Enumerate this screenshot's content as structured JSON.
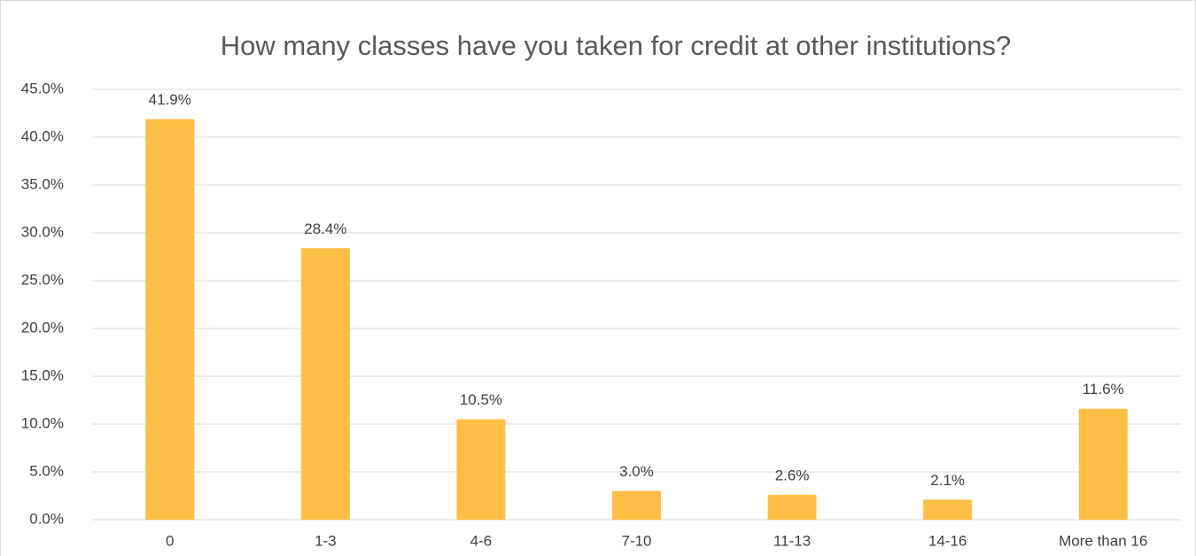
{
  "chart_data": {
    "type": "bar",
    "title": "How many classes have you taken for credit at other institutions?",
    "categories": [
      "0",
      "1-3",
      "4-6",
      "7-10",
      "11-13",
      "14-16",
      "More than 16"
    ],
    "values": [
      41.9,
      28.4,
      10.5,
      3.0,
      2.6,
      2.1,
      11.6
    ],
    "value_labels": [
      "41.9%",
      "28.4%",
      "10.5%",
      "3.0%",
      "2.6%",
      "2.1%",
      "11.6%"
    ],
    "color": "#ffbe45",
    "ylim": [
      0,
      45
    ],
    "yticks": [
      {
        "value": 0,
        "label": "0.0%"
      },
      {
        "value": 5,
        "label": "5.0%"
      },
      {
        "value": 10,
        "label": "10.0%"
      },
      {
        "value": 15,
        "label": "15.0%"
      },
      {
        "value": 20,
        "label": "20.0%"
      },
      {
        "value": 25,
        "label": "25.0%"
      },
      {
        "value": 30,
        "label": "30.0%"
      },
      {
        "value": 35,
        "label": "35.0%"
      },
      {
        "value": 40,
        "label": "40.0%"
      },
      {
        "value": 45,
        "label": "45.0%"
      }
    ],
    "grid": true
  }
}
